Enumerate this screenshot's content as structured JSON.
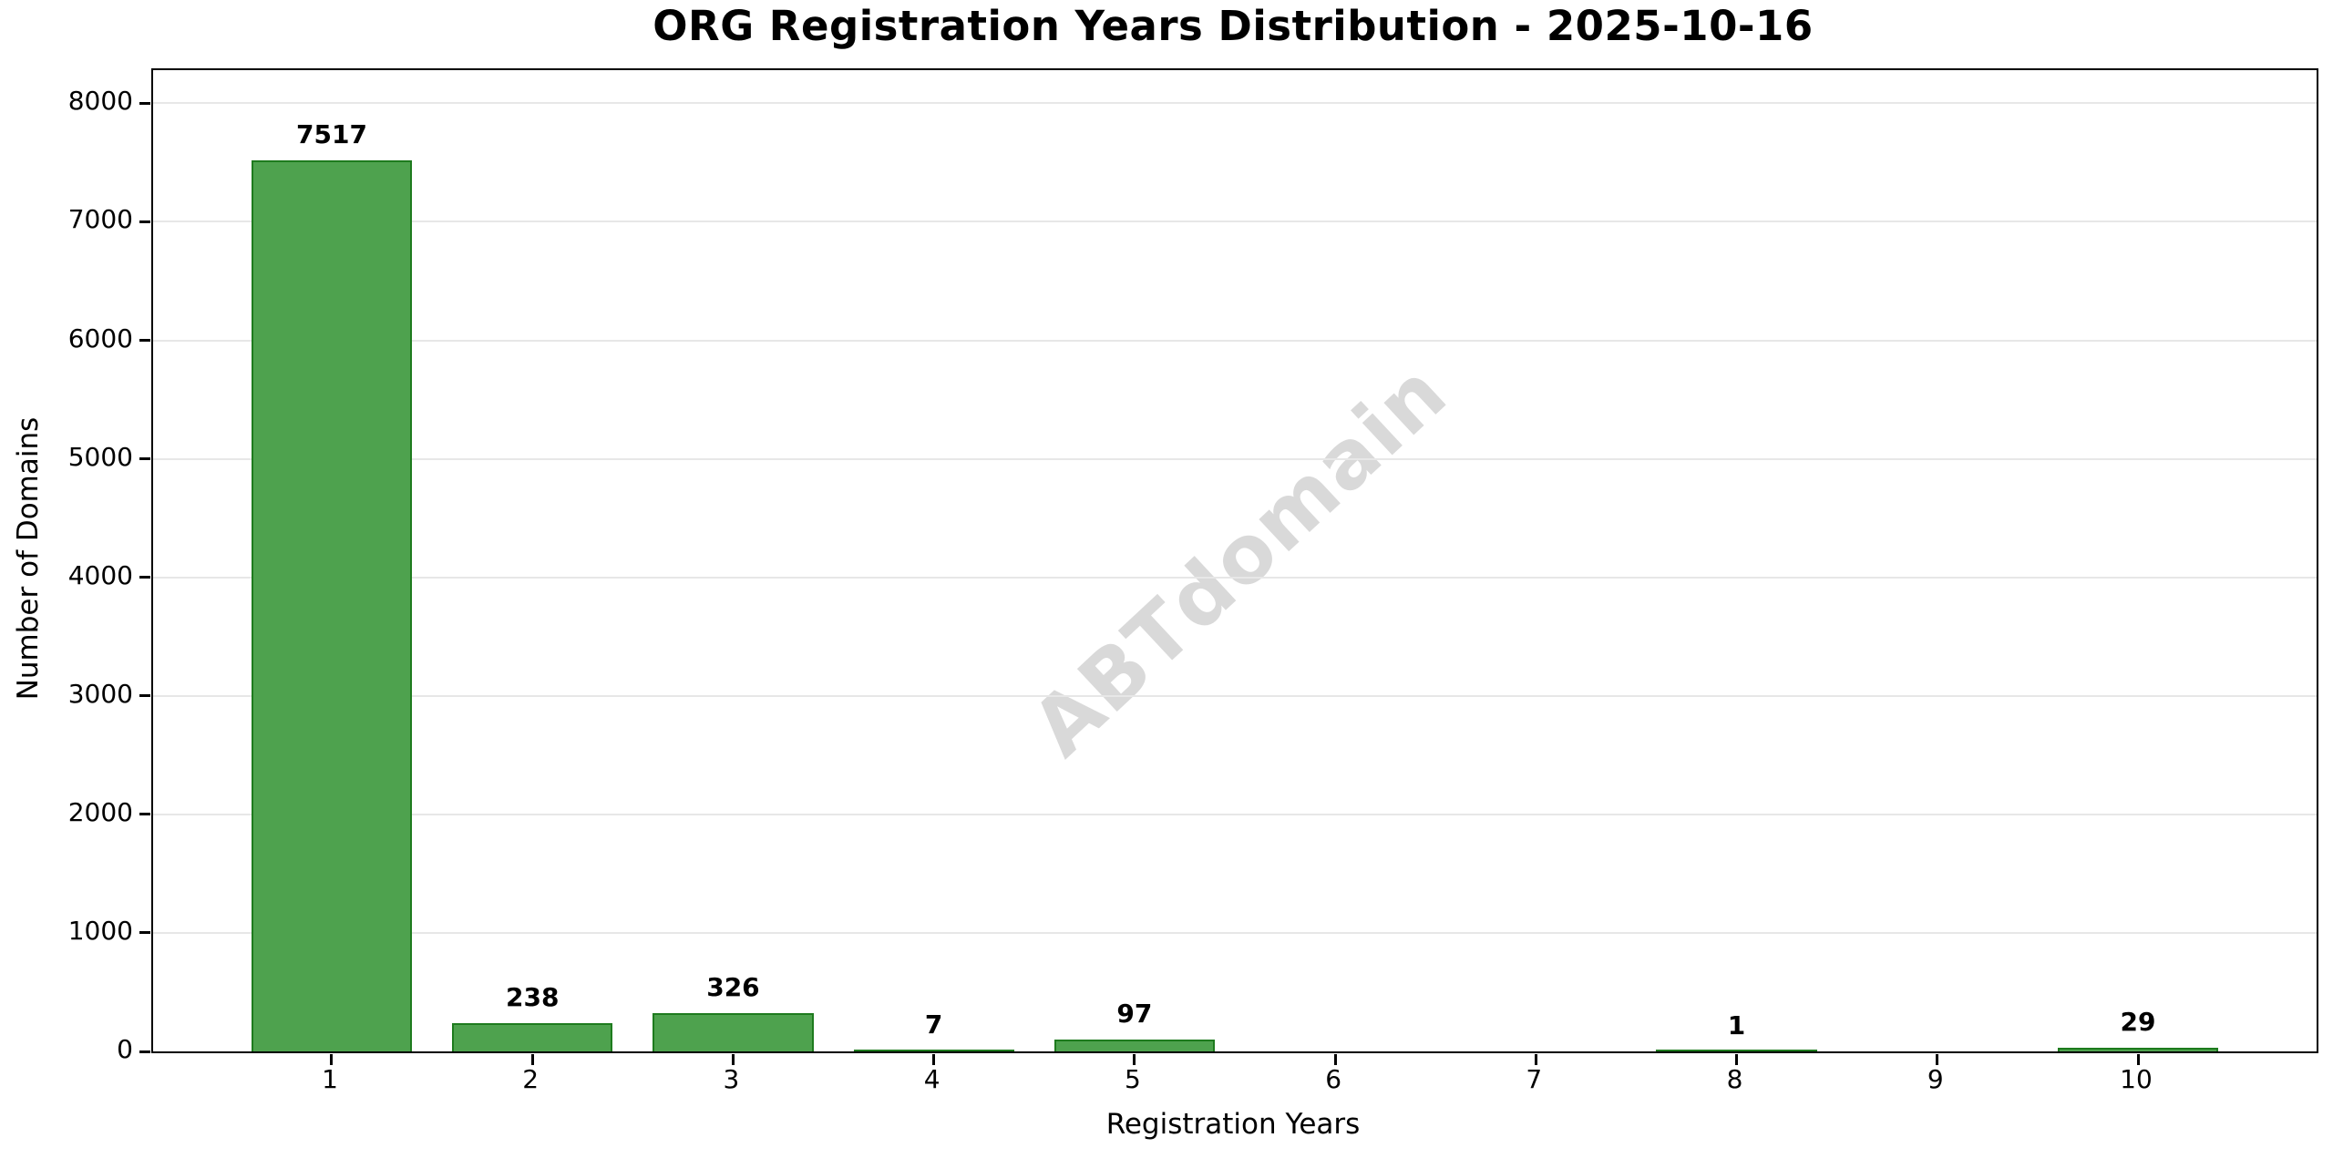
{
  "chart_data": {
    "type": "bar",
    "title": "ORG Registration Years Distribution - 2025-10-16",
    "xlabel": "Registration Years",
    "ylabel": "Number of Domains",
    "categories": [
      "1",
      "2",
      "3",
      "4",
      "5",
      "6",
      "7",
      "8",
      "9",
      "10"
    ],
    "values": [
      7517,
      238,
      326,
      7,
      97,
      0,
      0,
      1,
      0,
      29
    ],
    "bar_value_labels": [
      "7517",
      "238",
      "326",
      "7",
      "97",
      "",
      "",
      "1",
      "",
      "29"
    ],
    "yticks": [
      0,
      1000,
      2000,
      3000,
      4000,
      5000,
      6000,
      7000,
      8000
    ],
    "ylim": [
      0,
      8280
    ],
    "xlim": [
      0.11,
      10.89
    ],
    "bar_width_units": 0.8,
    "grid": "horizontal-only",
    "legend_position": "none",
    "colors": {
      "bar_fill": "#4EA24E",
      "bar_edge": "#1E7B1E",
      "gridline": "#E7E7E7",
      "axis": "#000000",
      "text": "#000000"
    }
  },
  "watermark": {
    "text": "ABTdomain",
    "color": "#D9D9D9"
  }
}
